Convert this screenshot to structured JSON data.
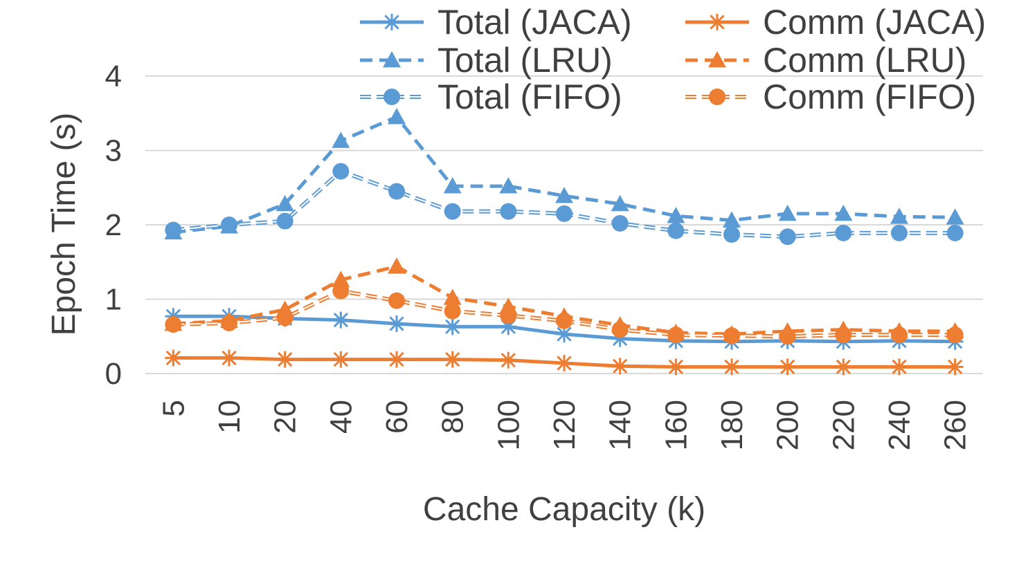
{
  "chart_data": {
    "type": "line",
    "title": "",
    "xlabel": "Cache Capacity (k)",
    "ylabel": "Epoch Time (s)",
    "categories": [
      "5",
      "10",
      "20",
      "40",
      "60",
      "80",
      "100",
      "120",
      "140",
      "160",
      "180",
      "200",
      "220",
      "240",
      "260"
    ],
    "ylim": [
      0,
      4
    ],
    "yticks": [
      "0",
      "1",
      "2",
      "3",
      "4"
    ],
    "grid": "horizontal",
    "legend_position": "top-right",
    "colors": {
      "blue": "#5B9BD5",
      "orange": "#ED7D31",
      "grid": "#D9D9D9",
      "text": "#404040"
    },
    "series": [
      {
        "name": "Total (JACA)",
        "color": "#5B9BD5",
        "line": "solid",
        "marker": "asterisk",
        "values": [
          0.77,
          0.77,
          0.74,
          0.72,
          0.67,
          0.63,
          0.63,
          0.53,
          0.47,
          0.44,
          0.43,
          0.44,
          0.43,
          0.44,
          0.43
        ]
      },
      {
        "name": "Total (LRU)",
        "color": "#5B9BD5",
        "line": "dashed",
        "marker": "triangle",
        "values": [
          1.9,
          1.98,
          2.28,
          3.13,
          3.45,
          2.52,
          2.52,
          2.39,
          2.28,
          2.12,
          2.06,
          2.15,
          2.15,
          2.11,
          2.1
        ]
      },
      {
        "name": "Total (FIFO)",
        "color": "#5B9BD5",
        "line": "double-dashed",
        "marker": "circle",
        "values": [
          1.93,
          2.0,
          2.05,
          2.72,
          2.45,
          2.18,
          2.18,
          2.15,
          2.02,
          1.92,
          1.87,
          1.84,
          1.89,
          1.89,
          1.89
        ]
      },
      {
        "name": "Comm (JACA)",
        "color": "#ED7D31",
        "line": "solid",
        "marker": "asterisk",
        "values": [
          0.21,
          0.21,
          0.19,
          0.19,
          0.19,
          0.19,
          0.18,
          0.14,
          0.1,
          0.09,
          0.09,
          0.09,
          0.09,
          0.09,
          0.09
        ]
      },
      {
        "name": "Comm (LRU)",
        "color": "#ED7D31",
        "line": "dashed",
        "marker": "triangle",
        "values": [
          0.67,
          0.71,
          0.86,
          1.26,
          1.44,
          1.02,
          0.9,
          0.77,
          0.65,
          0.55,
          0.53,
          0.57,
          0.59,
          0.57,
          0.57
        ]
      },
      {
        "name": "Comm (FIFO)",
        "color": "#ED7D31",
        "line": "double-dashed",
        "marker": "circle",
        "values": [
          0.66,
          0.68,
          0.75,
          1.11,
          0.98,
          0.84,
          0.78,
          0.71,
          0.59,
          0.52,
          0.51,
          0.5,
          0.52,
          0.52,
          0.52
        ]
      }
    ]
  }
}
